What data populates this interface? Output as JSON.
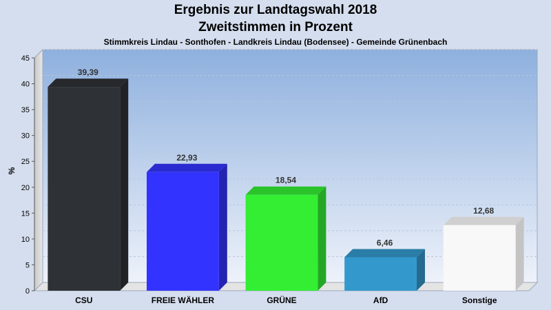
{
  "chart_data": {
    "type": "bar",
    "title": "Ergebnis zur Landtagswahl 2018",
    "subtitle": "Zweitstimmen in Prozent",
    "caption": "Stimmkreis Lindau - Sonthofen - Landkreis Lindau (Bodensee) - Gemeinde Grünenbach",
    "ylabel": "%",
    "ylim": [
      0,
      45
    ],
    "yticks": [
      0,
      5,
      10,
      15,
      20,
      25,
      30,
      35,
      40,
      45
    ],
    "grid": true,
    "categories": [
      "CSU",
      "FREIE WÄHLER",
      "GRÜNE",
      "AfD",
      "Sonstige"
    ],
    "values": [
      39.39,
      22.93,
      18.54,
      6.46,
      12.68
    ],
    "value_labels": [
      "39,39",
      "22,93",
      "18,54",
      "6,46",
      "12,68"
    ],
    "colors": [
      "#2e3136",
      "#3333ff",
      "#33ee33",
      "#3399cc",
      "#f8f8f8"
    ]
  }
}
